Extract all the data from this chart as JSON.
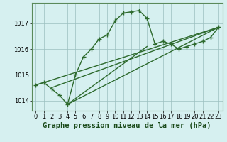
{
  "title": "Graphe pression niveau de la mer (hPa)",
  "x_values": [
    0,
    1,
    2,
    3,
    4,
    5,
    6,
    7,
    8,
    9,
    10,
    11,
    12,
    13,
    14,
    15,
    16,
    17,
    18,
    19,
    20,
    21,
    22,
    23
  ],
  "main_series": [
    1014.6,
    1014.7,
    1014.45,
    1014.2,
    1013.85,
    1015.0,
    1015.7,
    1016.0,
    1016.4,
    1016.55,
    1017.1,
    1017.4,
    1017.45,
    1017.5,
    1017.2,
    1016.2,
    1016.3,
    1016.2,
    1016.0,
    1016.1,
    1016.2,
    1016.3,
    1016.45,
    1016.85
  ],
  "trend_lines": [
    {
      "x0": 0,
      "y0": 1014.6,
      "x1": 23,
      "y1": 1016.85
    },
    {
      "x0": 2,
      "y0": 1014.5,
      "x1": 23,
      "y1": 1016.85
    },
    {
      "x0": 4,
      "y0": 1013.85,
      "x1": 23,
      "y1": 1016.85
    },
    {
      "x0": 4,
      "y0": 1013.85,
      "x1": 14,
      "y1": 1016.1
    }
  ],
  "line_color": "#2d6a2d",
  "marker": "+",
  "marker_size": 5,
  "line_width": 1.0,
  "xlim": [
    -0.5,
    23.5
  ],
  "ylim": [
    1013.6,
    1017.8
  ],
  "yticks": [
    1014,
    1015,
    1016,
    1017
  ],
  "xticks": [
    0,
    1,
    2,
    3,
    4,
    5,
    6,
    7,
    8,
    9,
    10,
    11,
    12,
    13,
    14,
    15,
    16,
    17,
    18,
    19,
    20,
    21,
    22,
    23
  ],
  "bg_color": "#d6f0f0",
  "grid_color": "#9bbfbf",
  "label_fontsize": 7.5,
  "tick_fontsize": 6
}
